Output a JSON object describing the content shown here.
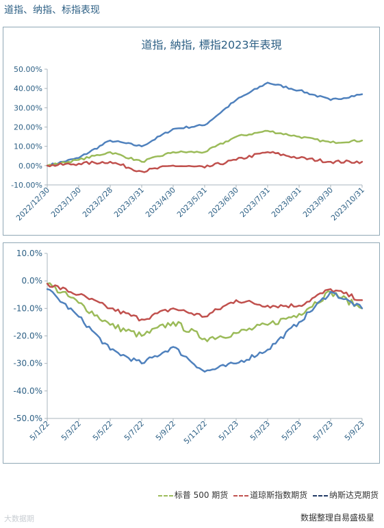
{
  "page_title": "道指、纳指、标指表现",
  "legend": [
    {
      "name": "标普 500 期货",
      "color": "#9bbb59"
    },
    {
      "name": "道琼斯指数期货",
      "color": "#c0504d"
    },
    {
      "name": "纳斯达克期货",
      "color": "#4f81bd"
    }
  ],
  "source": "数据整理自易盛极星",
  "watermark": "大数据期",
  "chart_data": [
    {
      "type": "line",
      "title": "道指, 納指, 標指2023年表現",
      "x": [
        "2022/12/30",
        "2023/1/30",
        "2023/2/28",
        "2023/3/31",
        "2023/4/30",
        "2023/5/31",
        "2023/6/30",
        "2023/7/31",
        "2023/8/31",
        "2023/9/30",
        "2023/10/31"
      ],
      "ylim": [
        -10,
        50
      ],
      "yticks": [
        -10,
        0,
        10,
        20,
        30,
        40,
        50
      ],
      "ytick_labels": [
        "-10.00%",
        "0.00%",
        "10.00%",
        "20.00%",
        "30.00%",
        "40.00%",
        "50.00%"
      ],
      "series": [
        {
          "color": "#4f81bd",
          "values": [
            0,
            4,
            13,
            10,
            19,
            21,
            34,
            43,
            39,
            34,
            37
          ]
        },
        {
          "color": "#9bbb59",
          "values": [
            0,
            3,
            7,
            2,
            7,
            7,
            15,
            18,
            15,
            12,
            13
          ]
        },
        {
          "color": "#c0504d",
          "values": [
            0,
            1,
            2,
            -3,
            0,
            -1,
            3,
            7,
            4,
            2,
            2
          ]
        }
      ]
    },
    {
      "type": "line",
      "x": [
        "5/1/22",
        "5/3/22",
        "5/5/22",
        "5/7/22",
        "5/9/22",
        "5/11/22",
        "5/1/23",
        "5/3/23",
        "5/5/23",
        "5/7/23",
        "5/9/23"
      ],
      "ylim": [
        -50,
        10
      ],
      "yticks": [
        -50,
        -40,
        -30,
        -20,
        -10,
        0,
        10
      ],
      "ytick_labels": [
        "-50.0%",
        "-40.0%",
        "-30.0%",
        "-20.0%",
        "-10.0%",
        "0.0%",
        "10.0%"
      ],
      "series": [
        {
          "name": "标普 500 期货",
          "color": "#9bbb59",
          "values": [
            -1,
            -8,
            -16,
            -20,
            -15,
            -21,
            -19,
            -16,
            -12,
            -4,
            -10
          ]
        },
        {
          "name": "道琼斯指数期货",
          "color": "#c0504d",
          "values": [
            -1,
            -5,
            -10,
            -14,
            -10,
            -13,
            -7,
            -9,
            -9,
            -3,
            -7
          ]
        },
        {
          "name": "纳斯达克期货",
          "color": "#4f81bd",
          "values": [
            -3,
            -13,
            -25,
            -30,
            -24,
            -33,
            -30,
            -25,
            -15,
            -4,
            -10
          ]
        }
      ]
    }
  ]
}
